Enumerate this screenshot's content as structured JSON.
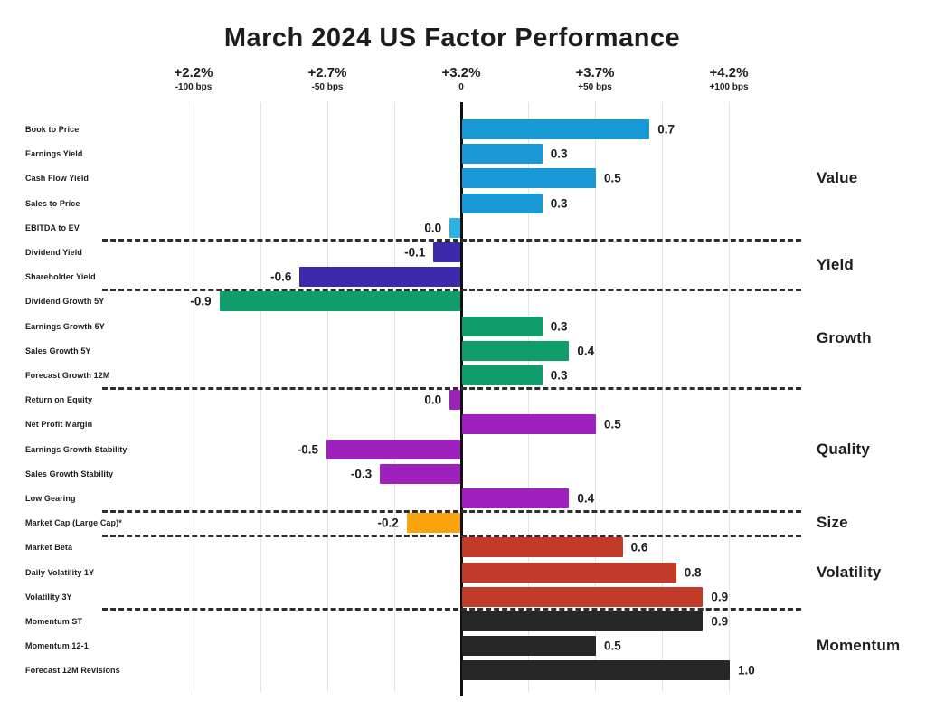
{
  "chart_data": {
    "type": "bar",
    "orientation": "horizontal",
    "title": "March 2024 US Factor Performance",
    "x_axis": {
      "ticks": [
        {
          "pct": "+2.2%",
          "bps": "-100 bps",
          "value": -1.0
        },
        {
          "pct": "+2.7%",
          "bps": "-50 bps",
          "value": -0.5
        },
        {
          "pct": "+3.2%",
          "bps": "0",
          "value": 0.0
        },
        {
          "pct": "+3.7%",
          "bps": "+50 bps",
          "value": 0.5
        },
        {
          "pct": "+4.2%",
          "bps": "+100 bps",
          "value": 1.0
        }
      ],
      "xlim": [
        -1.05,
        1.05
      ],
      "minor_grid_step": 0.25,
      "grid": true
    },
    "legend_position": "right",
    "groups": [
      {
        "name": "Value",
        "color": "#1899d5",
        "bars": [
          {
            "label": "Book to Price",
            "value": 0.7,
            "display": "0.7"
          },
          {
            "label": "Earnings Yield",
            "value": 0.3,
            "display": "0.3"
          },
          {
            "label": "Cash Flow Yield",
            "value": 0.5,
            "display": "0.5"
          },
          {
            "label": "Sales to Price",
            "value": 0.3,
            "display": "0.3"
          },
          {
            "label": "EBITDA to EV",
            "value": -0.04,
            "display": "0.0",
            "color": "#2ab3e4"
          }
        ]
      },
      {
        "name": "Yield",
        "color": "#3b2aab",
        "bars": [
          {
            "label": "Dividend Yield",
            "value": -0.1,
            "display": "-0.1"
          },
          {
            "label": "Shareholder Yield",
            "value": -0.6,
            "display": "-0.6"
          }
        ]
      },
      {
        "name": "Growth",
        "color": "#0f9d69",
        "bars": [
          {
            "label": "Dividend Growth 5Y",
            "value": -0.9,
            "display": "-0.9"
          },
          {
            "label": "Earnings Growth 5Y",
            "value": 0.3,
            "display": "0.3"
          },
          {
            "label": "Sales Growth 5Y",
            "value": 0.4,
            "display": "0.4"
          },
          {
            "label": "Forecast Growth 12M",
            "value": 0.3,
            "display": "0.3"
          }
        ]
      },
      {
        "name": "Quality",
        "color": "#9e20bd",
        "bars": [
          {
            "label": "Return on Equity",
            "value": -0.04,
            "display": "0.0"
          },
          {
            "label": "Net Profit Margin",
            "value": 0.5,
            "display": "0.5"
          },
          {
            "label": "Earnings Growth Stability",
            "value": -0.5,
            "display": "-0.5"
          },
          {
            "label": "Sales Growth Stability",
            "value": -0.3,
            "display": "-0.3"
          },
          {
            "label": "Low Gearing",
            "value": 0.4,
            "display": "0.4"
          }
        ]
      },
      {
        "name": "Size",
        "color": "#f9a40d",
        "bars": [
          {
            "label": "Market Cap (Large Cap)*",
            "value": -0.2,
            "display": "-0.2"
          }
        ]
      },
      {
        "name": "Volatility",
        "color": "#c23a28",
        "bars": [
          {
            "label": "Market Beta",
            "value": 0.6,
            "display": "0.6"
          },
          {
            "label": "Daily Volatility 1Y",
            "value": 0.8,
            "display": "0.8"
          },
          {
            "label": "Volatility 3Y",
            "value": 0.9,
            "display": "0.9"
          }
        ]
      },
      {
        "name": "Momentum",
        "color": "#272727",
        "bars": [
          {
            "label": "Momentum ST",
            "value": 0.9,
            "display": "0.9"
          },
          {
            "label": "Momentum 12-1",
            "value": 0.5,
            "display": "0.5"
          },
          {
            "label": "Forecast 12M Revisions",
            "value": 1.0,
            "display": "1.0"
          }
        ]
      }
    ]
  }
}
